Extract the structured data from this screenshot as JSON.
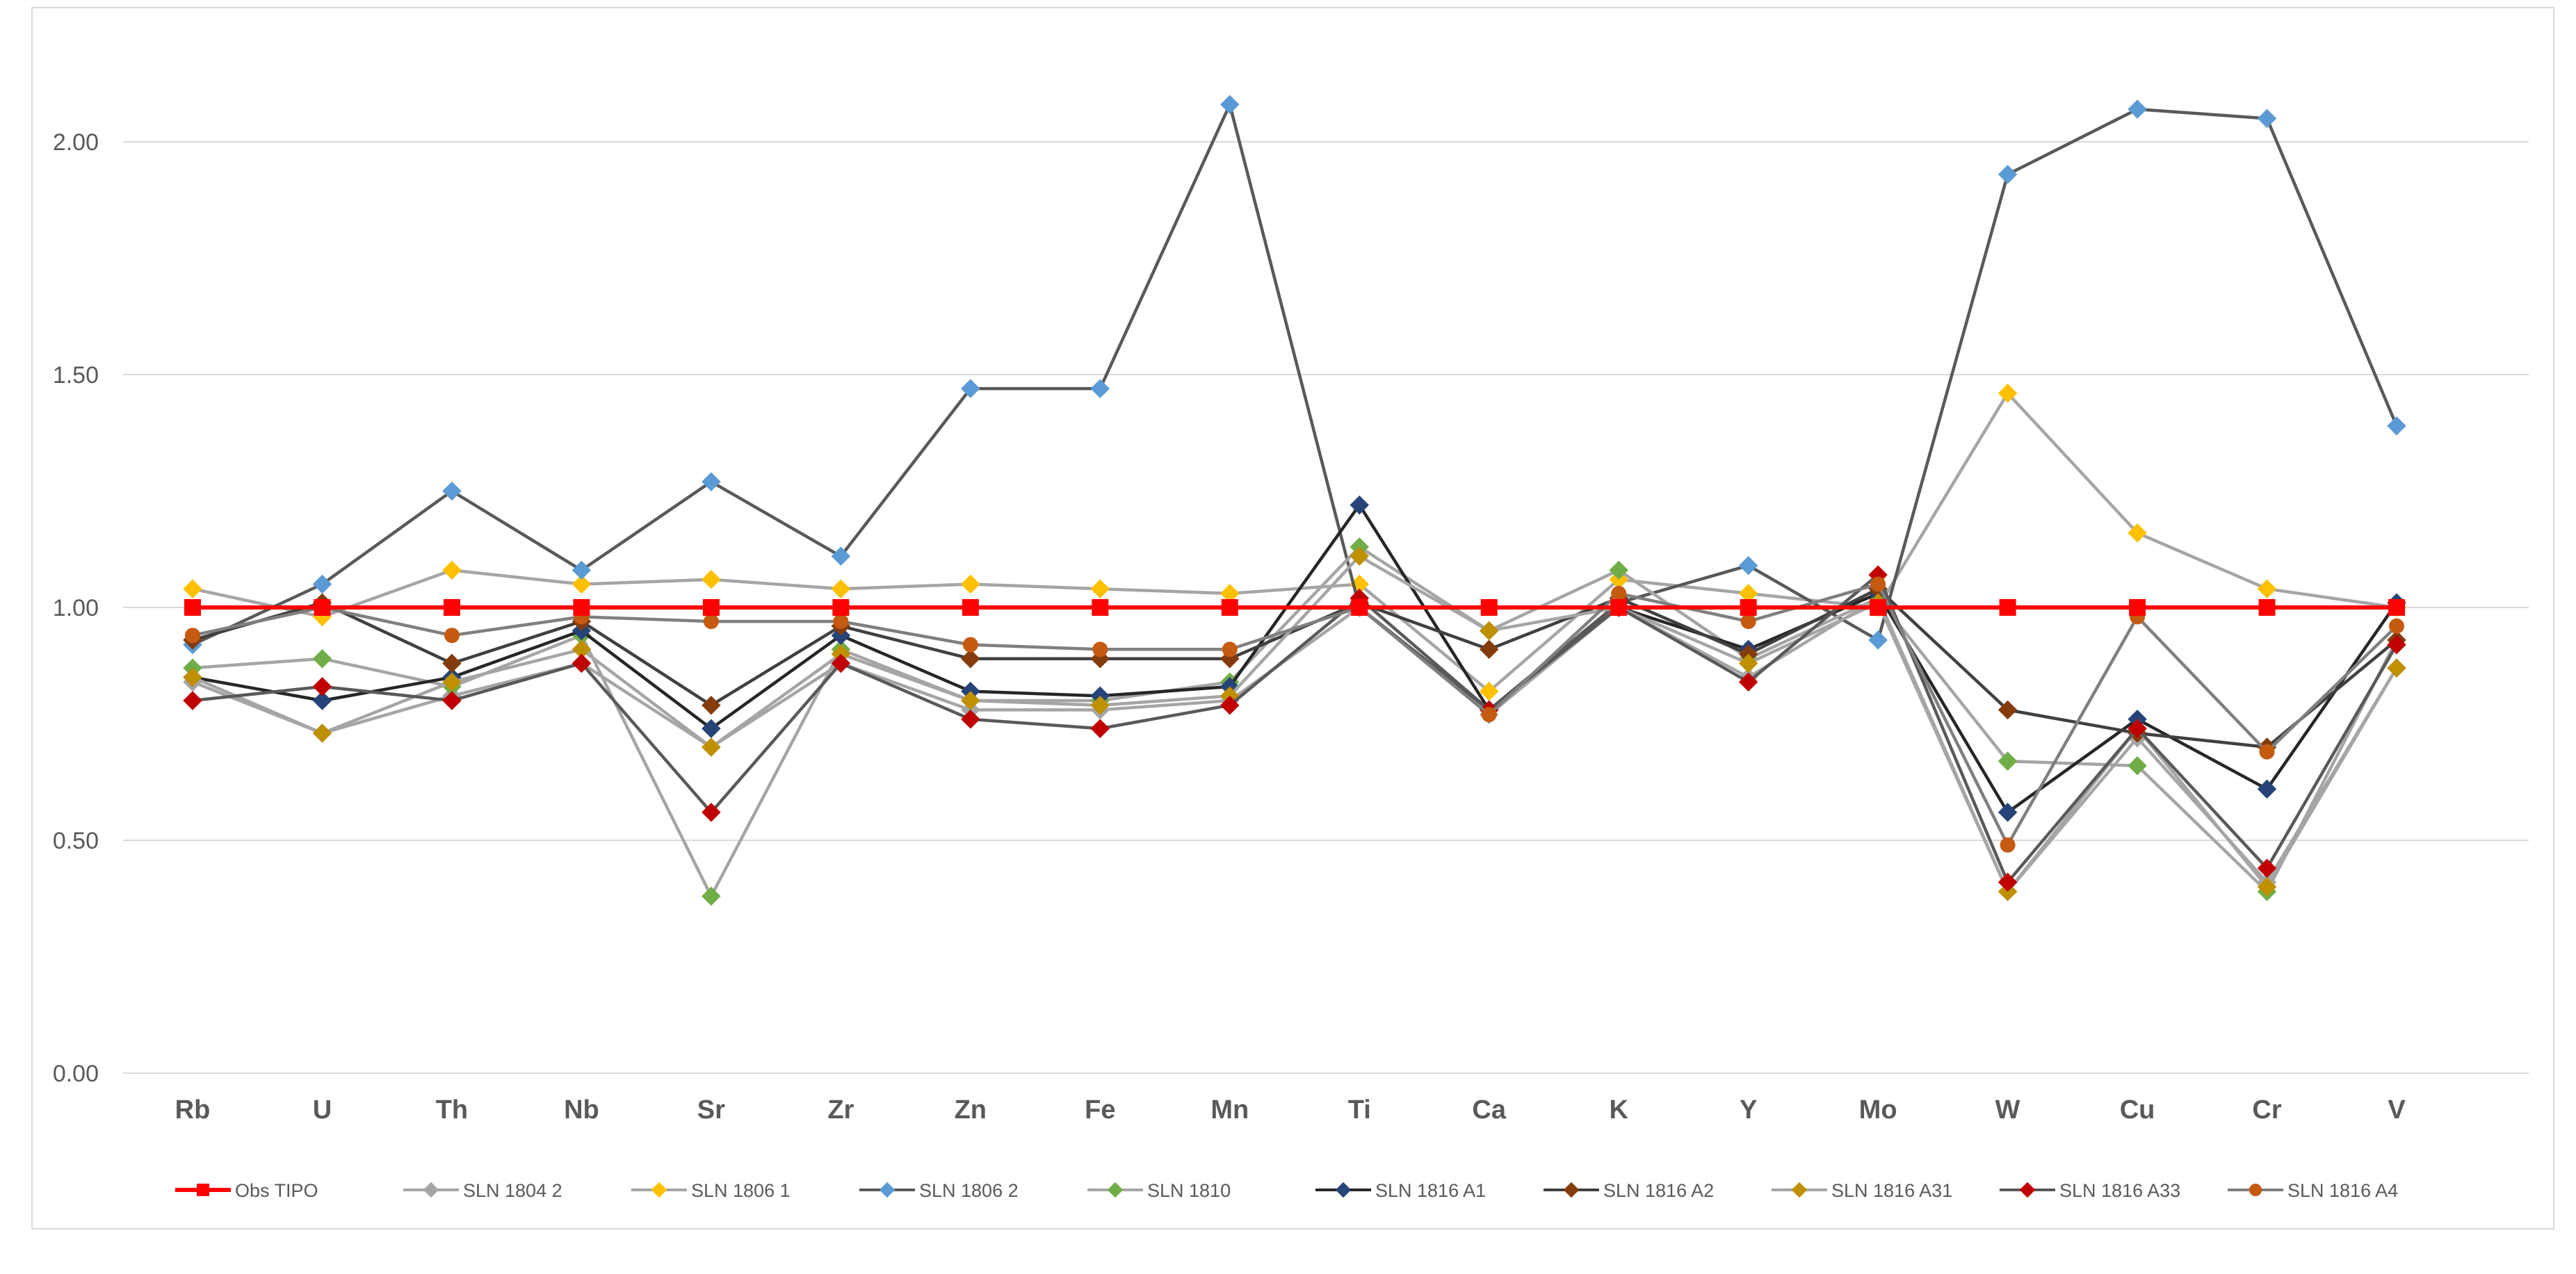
{
  "chart_data": {
    "type": "line",
    "title": "",
    "xlabel": "",
    "ylabel": "",
    "ylim": [
      0,
      2.2
    ],
    "yticks": [
      0.0,
      0.5,
      1.0,
      1.5,
      2.0
    ],
    "ytick_labels": [
      "0.00",
      "0.50",
      "1.00",
      "1.50",
      "2.00"
    ],
    "grid": true,
    "legend_position": "bottom",
    "categories": [
      "Rb",
      "U",
      "Th",
      "Nb",
      "Sr",
      "Zr",
      "Zn",
      "Fe",
      "Mn",
      "Ti",
      "Ca",
      "K",
      "Y",
      "Mo",
      "W",
      "Cu",
      "Cr",
      "V"
    ],
    "series": [
      {
        "name": "SLN 1804 2",
        "line_color": "#a5a5a5",
        "marker_color": "#a5a5a5",
        "marker": "diamond",
        "values": [
          0.84,
          0.73,
          0.81,
          0.88,
          0.7,
          0.88,
          0.78,
          0.78,
          0.8,
          1.0,
          0.77,
          1.0,
          0.85,
          1.02,
          0.39,
          0.72,
          0.41,
          0.87
        ]
      },
      {
        "name": "SLN 1806 1",
        "line_color": "#a5a5a5",
        "marker_color": "#ffc000",
        "marker": "diamond",
        "values": [
          1.04,
          0.98,
          1.08,
          1.05,
          1.06,
          1.04,
          1.05,
          1.04,
          1.03,
          1.05,
          0.82,
          1.06,
          1.03,
          1.0,
          1.46,
          1.16,
          1.04,
          1.0
        ]
      },
      {
        "name": "SLN 1806 2",
        "line_color": "#595959",
        "marker_color": "#5b9bd5",
        "marker": "diamond",
        "values": [
          0.92,
          1.05,
          1.25,
          1.08,
          1.27,
          1.11,
          1.47,
          1.47,
          2.08,
          1.0,
          0.78,
          1.01,
          1.09,
          0.93,
          1.93,
          2.07,
          2.05,
          1.39
        ]
      },
      {
        "name": "SLN 1810",
        "line_color": "#a5a5a5",
        "marker_color": "#70ad47",
        "marker": "diamond",
        "values": [
          0.87,
          0.89,
          0.83,
          0.94,
          0.38,
          0.91,
          0.8,
          0.8,
          0.84,
          1.13,
          0.95,
          1.08,
          0.89,
          1.02,
          0.67,
          0.66,
          0.39,
          0.93
        ]
      },
      {
        "name": "SLN 1816 A1",
        "line_color": "#262626",
        "marker_color": "#264478",
        "marker": "diamond",
        "values": [
          0.85,
          0.8,
          0.85,
          0.95,
          0.74,
          0.94,
          0.82,
          0.81,
          0.83,
          1.22,
          0.78,
          1.0,
          0.91,
          1.03,
          0.56,
          0.76,
          0.61,
          1.01
        ]
      },
      {
        "name": "SLN 1816 A2",
        "line_color": "#404040",
        "marker_color": "#843c0c",
        "marker": "diamond",
        "values": [
          0.93,
          1.01,
          0.88,
          0.97,
          0.79,
          0.96,
          0.89,
          0.89,
          0.89,
          1.01,
          0.91,
          1.02,
          0.9,
          1.04,
          0.78,
          0.73,
          0.7,
          0.93
        ]
      },
      {
        "name": "SLN 1816 A31",
        "line_color": "#a5a5a5",
        "marker_color": "#bf9000",
        "marker": "diamond",
        "values": [
          0.85,
          0.73,
          0.84,
          0.91,
          0.7,
          0.9,
          0.8,
          0.79,
          0.81,
          1.11,
          0.95,
          1.0,
          0.88,
          1.01,
          0.39,
          0.74,
          0.4,
          0.87
        ]
      },
      {
        "name": "SLN 1816 A33",
        "line_color": "#595959",
        "marker_color": "#c00000",
        "marker": "diamond",
        "values": [
          0.8,
          0.83,
          0.8,
          0.88,
          0.56,
          0.88,
          0.76,
          0.74,
          0.79,
          1.02,
          0.78,
          1.0,
          0.84,
          1.07,
          0.41,
          0.74,
          0.44,
          0.92
        ]
      },
      {
        "name": "SLN 1816 A4",
        "line_color": "#7f7f7f",
        "marker_color": "#c55a11",
        "marker": "circle",
        "values": [
          0.94,
          1.0,
          0.94,
          0.98,
          0.97,
          0.97,
          0.92,
          0.91,
          0.91,
          1.0,
          0.77,
          1.03,
          0.97,
          1.05,
          0.49,
          0.98,
          0.69,
          0.96
        ]
      },
      {
        "name": "Obs TIPO",
        "line_color": "#ff0000",
        "marker_color": "#ff0000",
        "marker": "square",
        "values": [
          1.0,
          1.0,
          1.0,
          1.0,
          1.0,
          1.0,
          1.0,
          1.0,
          1.0,
          1.0,
          1.0,
          1.0,
          1.0,
          1.0,
          1.0,
          1.0,
          1.0,
          1.0
        ]
      }
    ],
    "legend_order": [
      "Obs TIPO",
      "SLN 1804 2",
      "SLN 1806 1",
      "SLN 1806 2",
      "SLN 1810",
      "SLN 1816 A1",
      "SLN 1816 A2",
      "SLN 1816 A31",
      "SLN 1816 A33",
      "SLN 1816 A4"
    ]
  }
}
